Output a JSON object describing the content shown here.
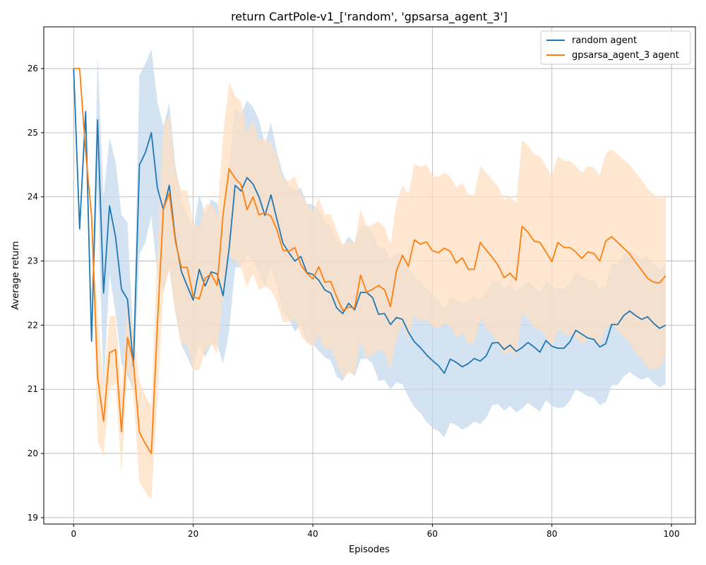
{
  "chart_data": {
    "type": "line",
    "title": "return CartPole-v1_['random', 'gpsarsa_agent_3']",
    "xlabel": "Episodes",
    "ylabel": "Average return",
    "xlim": [
      -5,
      104
    ],
    "ylim": [
      18.9,
      26.65
    ],
    "xticks": [
      0,
      20,
      40,
      60,
      80,
      100
    ],
    "yticks": [
      19,
      20,
      21,
      22,
      23,
      24,
      25,
      26
    ],
    "grid": true,
    "legend_position": "top-right",
    "x": [
      0,
      1,
      2,
      3,
      4,
      5,
      6,
      7,
      8,
      9,
      10,
      11,
      12,
      13,
      14,
      15,
      16,
      17,
      18,
      19,
      20,
      21,
      22,
      23,
      24,
      25,
      26,
      27,
      28,
      29,
      30,
      31,
      32,
      33,
      34,
      35,
      36,
      37,
      38,
      39,
      40,
      41,
      42,
      43,
      44,
      45,
      46,
      47,
      48,
      49,
      50,
      51,
      52,
      53,
      54,
      55,
      56,
      57,
      58,
      59,
      60,
      61,
      62,
      63,
      64,
      65,
      66,
      67,
      68,
      69,
      70,
      71,
      72,
      73,
      74,
      75,
      76,
      77,
      78,
      79,
      80,
      81,
      82,
      83,
      84,
      85,
      86,
      87,
      88,
      89,
      90,
      91,
      92,
      93,
      94,
      95,
      96,
      97,
      98,
      99
    ],
    "series": [
      {
        "name": "random agent",
        "color": "#1f77b4",
        "fill": "#c5daec",
        "values": [
          26.0,
          23.5,
          25.33,
          21.75,
          25.2,
          22.5,
          23.86,
          23.38,
          22.56,
          22.4,
          21.36,
          24.5,
          24.69,
          25.0,
          24.14,
          23.8,
          24.18,
          23.35,
          22.84,
          22.61,
          22.39,
          22.87,
          22.61,
          22.83,
          22.8,
          22.46,
          23.19,
          24.18,
          24.09,
          24.3,
          24.2,
          24.0,
          23.71,
          24.03,
          23.65,
          23.28,
          23.13,
          23.0,
          23.07,
          22.82,
          22.79,
          22.7,
          22.55,
          22.5,
          22.27,
          22.18,
          22.34,
          22.24,
          22.51,
          22.51,
          22.43,
          22.17,
          22.18,
          22.01,
          22.12,
          22.09,
          21.89,
          21.74,
          21.65,
          21.54,
          21.45,
          21.37,
          21.25,
          21.47,
          21.42,
          21.35,
          21.4,
          21.48,
          21.44,
          21.52,
          21.72,
          21.73,
          21.62,
          21.69,
          21.59,
          21.65,
          21.73,
          21.66,
          21.58,
          21.76,
          21.67,
          21.64,
          21.64,
          21.74,
          21.92,
          21.86,
          21.8,
          21.78,
          21.66,
          21.71,
          22.01,
          22.01,
          22.15,
          22.22,
          22.15,
          22.09,
          22.13,
          22.03,
          21.95,
          22.0
        ],
        "lower": [
          26.0,
          23.5,
          25.33,
          21.75,
          24.2,
          21.0,
          22.8,
          22.2,
          21.4,
          21.2,
          21.0,
          23.1,
          23.3,
          23.7,
          22.8,
          22.5,
          22.9,
          22.2,
          21.7,
          21.5,
          21.3,
          21.7,
          21.5,
          21.7,
          21.7,
          21.4,
          21.9,
          22.9,
          22.9,
          23.1,
          23.0,
          22.8,
          22.6,
          22.9,
          22.6,
          22.2,
          22.1,
          21.9,
          22.0,
          21.75,
          21.7,
          21.6,
          21.5,
          21.45,
          21.2,
          21.13,
          21.3,
          21.2,
          21.47,
          21.48,
          21.4,
          21.13,
          21.15,
          21.0,
          21.11,
          21.08,
          20.88,
          20.72,
          20.63,
          20.5,
          20.4,
          20.35,
          20.25,
          20.48,
          20.44,
          20.37,
          20.42,
          20.5,
          20.46,
          20.55,
          20.75,
          20.77,
          20.67,
          20.74,
          20.64,
          20.7,
          20.79,
          20.72,
          20.65,
          20.83,
          20.74,
          20.71,
          20.72,
          20.82,
          21.0,
          20.95,
          20.89,
          20.87,
          20.75,
          20.8,
          21.06,
          21.07,
          21.2,
          21.27,
          21.2,
          21.15,
          21.19,
          21.1,
          21.03,
          21.08
        ],
        "upper": [
          26.0,
          23.5,
          25.33,
          21.75,
          26.2,
          24.0,
          24.92,
          24.56,
          23.72,
          23.6,
          21.72,
          25.9,
          26.08,
          26.3,
          25.48,
          25.1,
          25.46,
          24.5,
          23.98,
          23.72,
          23.48,
          24.04,
          23.72,
          23.96,
          23.9,
          23.52,
          24.48,
          25.4,
          25.28,
          25.5,
          25.4,
          25.2,
          24.82,
          25.16,
          24.7,
          24.36,
          24.16,
          24.1,
          24.14,
          23.89,
          23.88,
          23.8,
          23.6,
          23.55,
          23.34,
          23.23,
          23.38,
          23.28,
          23.55,
          23.54,
          23.46,
          23.21,
          23.21,
          23.02,
          23.13,
          23.1,
          22.9,
          22.76,
          22.67,
          22.58,
          22.5,
          22.39,
          22.25,
          22.46,
          22.4,
          22.33,
          22.38,
          22.46,
          22.42,
          22.49,
          22.69,
          22.69,
          22.57,
          22.64,
          22.54,
          22.6,
          22.67,
          22.6,
          22.51,
          22.69,
          22.6,
          22.57,
          22.56,
          22.66,
          22.84,
          22.77,
          22.71,
          22.69,
          22.57,
          22.62,
          22.96,
          22.95,
          23.1,
          23.17,
          23.1,
          23.03,
          23.07,
          22.96,
          22.87,
          22.92
        ]
      },
      {
        "name": "gpsarsa_agent_3 agent",
        "color": "#ff7f0e",
        "fill": "#ffdfc2",
        "values": [
          26.0,
          26.0,
          24.7,
          23.7,
          21.2,
          20.5,
          21.57,
          21.62,
          20.34,
          21.81,
          21.42,
          20.33,
          20.15,
          20.0,
          22.0,
          23.81,
          24.06,
          23.31,
          22.9,
          22.9,
          22.44,
          22.41,
          22.73,
          22.8,
          22.62,
          23.73,
          24.44,
          24.29,
          24.19,
          23.8,
          24.0,
          23.72,
          23.75,
          23.7,
          23.49,
          23.17,
          23.15,
          23.21,
          22.94,
          22.81,
          22.72,
          22.91,
          22.67,
          22.68,
          22.44,
          22.23,
          22.28,
          22.27,
          22.78,
          22.51,
          22.56,
          22.62,
          22.55,
          22.29,
          22.85,
          23.09,
          22.92,
          23.33,
          23.26,
          23.3,
          23.16,
          23.13,
          23.2,
          23.15,
          22.97,
          23.05,
          22.87,
          22.87,
          23.29,
          23.17,
          23.06,
          22.93,
          22.74,
          22.81,
          22.7,
          23.54,
          23.45,
          23.31,
          23.29,
          23.14,
          22.99,
          23.29,
          23.21,
          23.21,
          23.14,
          23.04,
          23.14,
          23.12,
          23.0,
          23.31,
          23.38,
          23.29,
          23.2,
          23.11,
          22.98,
          22.86,
          22.73,
          22.67,
          22.66,
          22.77
        ],
        "lower": [
          26.0,
          26.0,
          24.7,
          23.7,
          20.2,
          19.95,
          21.0,
          21.1,
          19.7,
          21.3,
          20.9,
          19.55,
          19.4,
          19.27,
          20.8,
          22.55,
          22.85,
          22.2,
          21.7,
          21.7,
          21.3,
          21.3,
          21.6,
          21.7,
          21.55,
          22.5,
          23.1,
          23.0,
          22.9,
          22.6,
          22.8,
          22.55,
          22.6,
          22.55,
          22.35,
          22.05,
          22.05,
          22.1,
          21.85,
          21.72,
          21.67,
          21.84,
          21.62,
          21.63,
          21.4,
          21.2,
          21.25,
          21.25,
          21.75,
          21.48,
          21.55,
          21.62,
          21.57,
          21.32,
          21.8,
          22.0,
          21.8,
          22.15,
          22.05,
          22.1,
          21.98,
          21.95,
          22.02,
          21.98,
          21.8,
          21.88,
          21.7,
          21.72,
          22.1,
          21.96,
          21.85,
          21.7,
          21.53,
          21.6,
          21.5,
          22.2,
          22.1,
          21.95,
          21.95,
          21.8,
          21.65,
          21.94,
          21.86,
          21.86,
          21.8,
          21.7,
          21.8,
          21.78,
          21.66,
          21.95,
          22.02,
          21.92,
          21.82,
          21.72,
          21.58,
          21.46,
          21.34,
          21.3,
          21.35,
          21.5
        ],
        "upper": [
          26.0,
          26.0,
          24.7,
          23.7,
          22.2,
          21.05,
          22.14,
          22.14,
          20.98,
          22.32,
          21.94,
          21.11,
          20.9,
          20.73,
          23.2,
          25.07,
          25.27,
          24.42,
          24.1,
          24.1,
          23.58,
          23.52,
          23.86,
          23.9,
          23.69,
          24.96,
          25.78,
          25.58,
          25.48,
          25.0,
          25.2,
          24.89,
          24.9,
          24.85,
          24.63,
          24.29,
          24.25,
          24.32,
          24.03,
          23.9,
          23.77,
          23.98,
          23.72,
          23.73,
          23.48,
          23.26,
          23.31,
          23.29,
          23.81,
          23.54,
          23.57,
          23.62,
          23.53,
          23.26,
          23.9,
          24.18,
          24.04,
          24.51,
          24.47,
          24.5,
          24.34,
          24.31,
          24.38,
          24.32,
          24.14,
          24.22,
          24.04,
          24.02,
          24.48,
          24.38,
          24.27,
          24.16,
          23.95,
          24.02,
          23.9,
          24.88,
          24.8,
          24.67,
          24.63,
          24.48,
          24.33,
          24.64,
          24.56,
          24.56,
          24.48,
          24.38,
          24.48,
          24.46,
          24.34,
          24.67,
          24.74,
          24.66,
          24.58,
          24.5,
          24.38,
          24.26,
          24.12,
          24.04,
          23.97,
          24.04
        ]
      }
    ]
  }
}
